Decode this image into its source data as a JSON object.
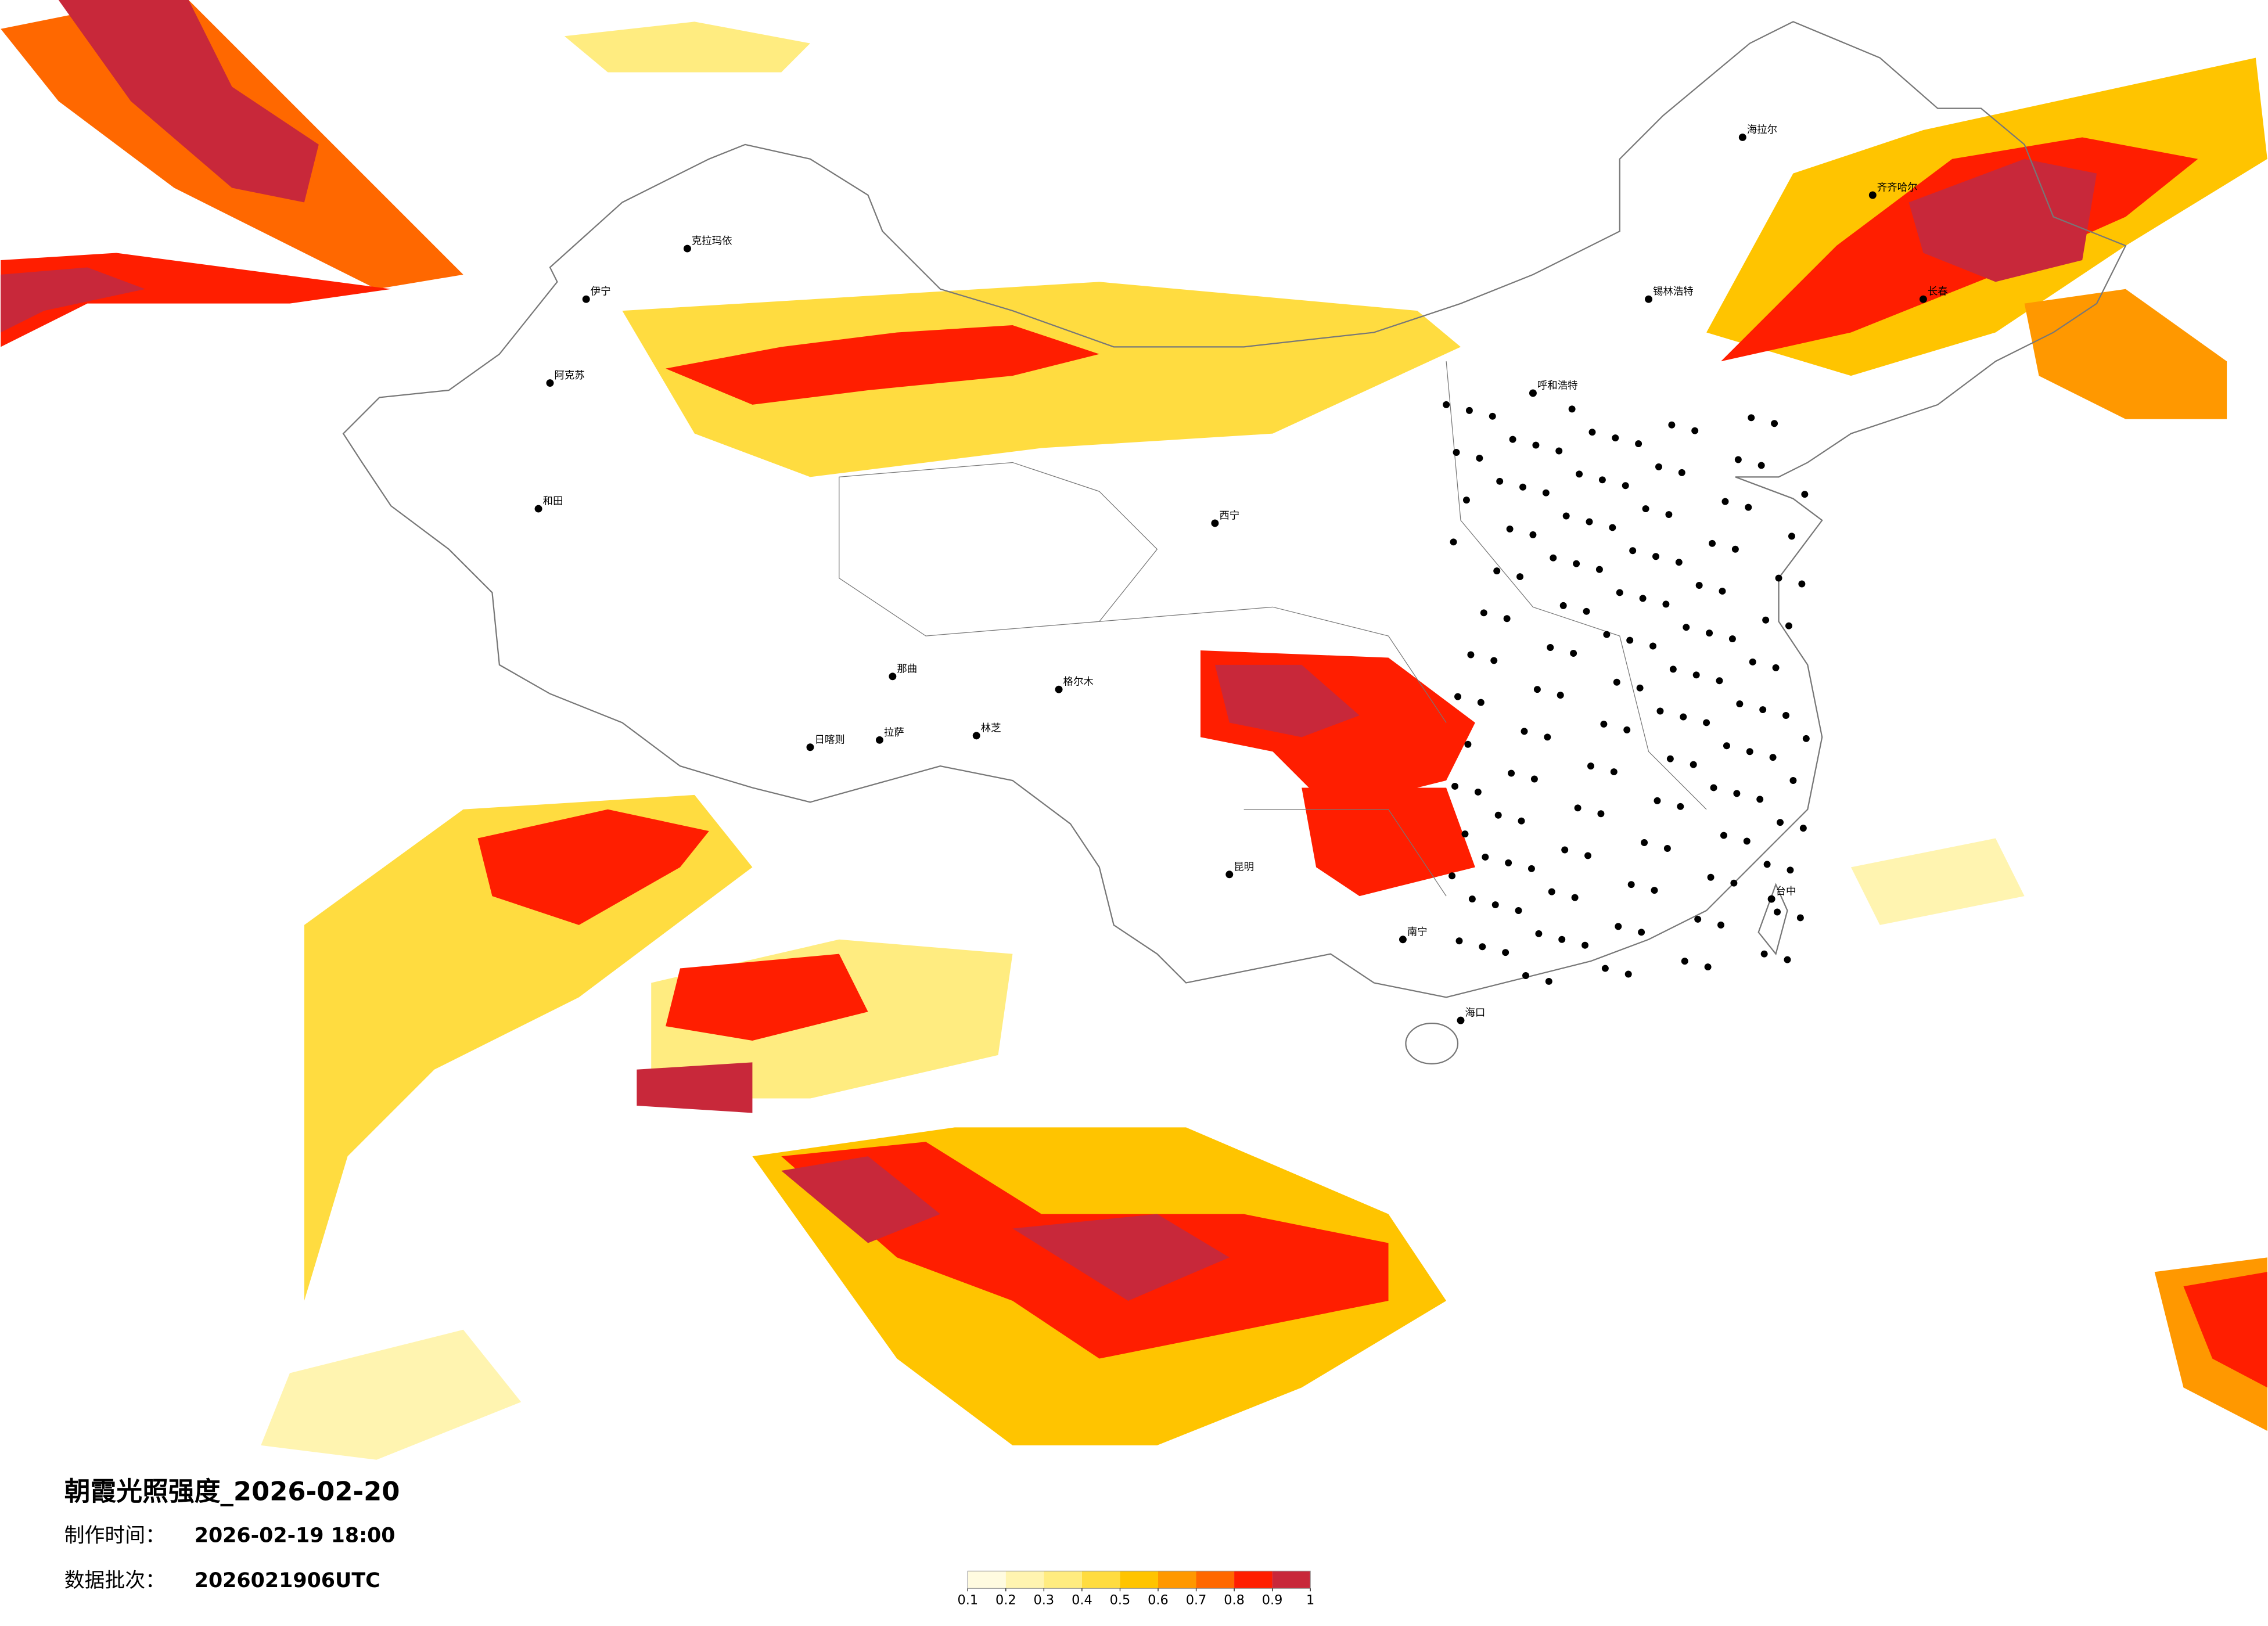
{
  "header": {
    "title": "朝霞光照强度_2026-02-20",
    "made_label": "制作时间：",
    "made_time": "2026-02-19 18:00",
    "batch_label": "数据批次：",
    "batch": "2026021906UTC"
  },
  "legend": {
    "colors": [
      "#fffbe0",
      "#fff4b0",
      "#ffec80",
      "#ffdc40",
      "#ffc400",
      "#ff9800",
      "#ff6800",
      "#ff1e00",
      "#c8283a"
    ],
    "ticks": [
      0.1,
      0.2,
      0.3,
      0.4,
      0.5,
      0.6,
      0.7,
      0.8,
      0.9,
      1
    ]
  },
  "cities": [
    "伊宁",
    "克拉玛依",
    "阿克苏",
    "和田",
    "日喀则",
    "拉萨",
    "林芝",
    "那曲",
    "格尔木",
    "西宁",
    "呼和浩特",
    "锡林浩特",
    "海拉尔",
    "齐齐哈尔",
    "长春",
    "昆明",
    "南宁",
    "海口",
    "台中"
  ]
}
